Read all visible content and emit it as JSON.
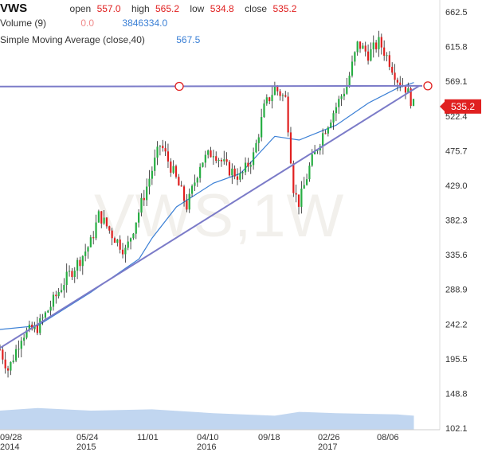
{
  "header": {
    "ticker": "VWS",
    "open_label": "open",
    "open_value": "557.0",
    "high_label": "high",
    "high_value": "565.2",
    "low_label": "low",
    "low_value": "534.8",
    "close_label": "close",
    "close_value": "535.2",
    "volume_label": "Volume (9)",
    "volume_value1": "0.0",
    "volume_value2": "3846334.0",
    "sma_label": "Simple Moving Average (close,40)",
    "sma_value": "567.5"
  },
  "watermark": "VWS,1W",
  "last_price_badge": "535.2",
  "colors": {
    "up": "#27ae43",
    "down": "#e02020",
    "sma": "#3a7fd5",
    "trendline": "#7b7bc8",
    "volume": "#a7c4ea",
    "badge": "#e02020"
  },
  "chart_data": {
    "type": "candlestick",
    "title": "",
    "ylim": [
      100,
      670
    ],
    "y_ticks": [
      662.5,
      615.8,
      569.1,
      522.4,
      475.7,
      429.0,
      382.3,
      335.6,
      288.9,
      242.2,
      195.5,
      148.8,
      102.1
    ],
    "x_tick_labels": [
      {
        "top": "09/28",
        "bottom": "2014"
      },
      {
        "top": "05/24",
        "bottom": "2015"
      },
      {
        "top": "11/01",
        "bottom": ""
      },
      {
        "top": "04/10",
        "bottom": "2016"
      },
      {
        "top": "09/18",
        "bottom": ""
      },
      {
        "top": "02/26",
        "bottom": "2017"
      },
      {
        "top": "08/06",
        "bottom": ""
      }
    ],
    "close_path": [
      [
        "2014-09-28",
        208
      ],
      [
        "2014-10-20",
        180
      ],
      [
        "2014-11-24",
        228
      ],
      [
        "2015-01-05",
        238
      ],
      [
        "2015-02-09",
        268
      ],
      [
        "2015-03-16",
        300
      ],
      [
        "2015-04-27",
        330
      ],
      [
        "2015-05-24",
        352
      ],
      [
        "2015-06-15",
        390
      ],
      [
        "2015-07-20",
        362
      ],
      [
        "2015-08-24",
        340
      ],
      [
        "2015-09-28",
        395
      ],
      [
        "2015-11-01",
        450
      ],
      [
        "2015-11-23",
        485
      ],
      [
        "2015-12-28",
        445
      ],
      [
        "2016-02-01",
        400
      ],
      [
        "2016-03-07",
        460
      ],
      [
        "2016-04-10",
        475
      ],
      [
        "2016-05-16",
        452
      ],
      [
        "2016-06-20",
        440
      ],
      [
        "2016-07-25",
        470
      ],
      [
        "2016-08-22",
        535
      ],
      [
        "2016-09-18",
        560
      ],
      [
        "2016-10-17",
        545
      ],
      [
        "2016-11-07",
        420
      ],
      [
        "2016-11-21",
        405
      ],
      [
        "2016-12-19",
        455
      ],
      [
        "2017-01-23",
        500
      ],
      [
        "2017-02-26",
        535
      ],
      [
        "2017-03-27",
        565
      ],
      [
        "2017-04-24",
        620
      ],
      [
        "2017-05-22",
        605
      ],
      [
        "2017-06-19",
        622
      ],
      [
        "2017-07-17",
        595
      ],
      [
        "2017-08-06",
        572
      ],
      [
        "2017-08-28",
        560
      ],
      [
        "2017-09-18",
        535.2
      ]
    ],
    "sma_path": [
      [
        "2014-09-28",
        235
      ],
      [
        "2015-01-05",
        240
      ],
      [
        "2015-05-24",
        285
      ],
      [
        "2015-09-28",
        330
      ],
      [
        "2015-11-01",
        358
      ],
      [
        "2016-01-04",
        400
      ],
      [
        "2016-04-10",
        432
      ],
      [
        "2016-06-20",
        445
      ],
      [
        "2016-09-18",
        495
      ],
      [
        "2016-11-21",
        490
      ],
      [
        "2017-02-26",
        510
      ],
      [
        "2017-05-22",
        540
      ],
      [
        "2017-08-06",
        560
      ],
      [
        "2017-09-18",
        567.5
      ]
    ],
    "volume_envelope": [
      [
        "2014-09-28",
        0.3
      ],
      [
        "2015-01-05",
        0.34
      ],
      [
        "2015-05-24",
        0.3
      ],
      [
        "2015-11-01",
        0.32
      ],
      [
        "2016-04-10",
        0.26
      ],
      [
        "2016-09-18",
        0.22
      ],
      [
        "2016-11-21",
        0.28
      ],
      [
        "2017-02-26",
        0.26
      ],
      [
        "2017-08-06",
        0.24
      ],
      [
        "2017-09-18",
        0.22
      ]
    ],
    "trendlines": [
      {
        "name": "horizontal",
        "points": [
          [
            "2014-09-28",
            562
          ],
          [
            "2017-10-10",
            563
          ]
        ]
      },
      {
        "name": "ascending",
        "points": [
          [
            "2014-09-28",
            210
          ],
          [
            "2017-10-02",
            563
          ]
        ]
      }
    ]
  }
}
